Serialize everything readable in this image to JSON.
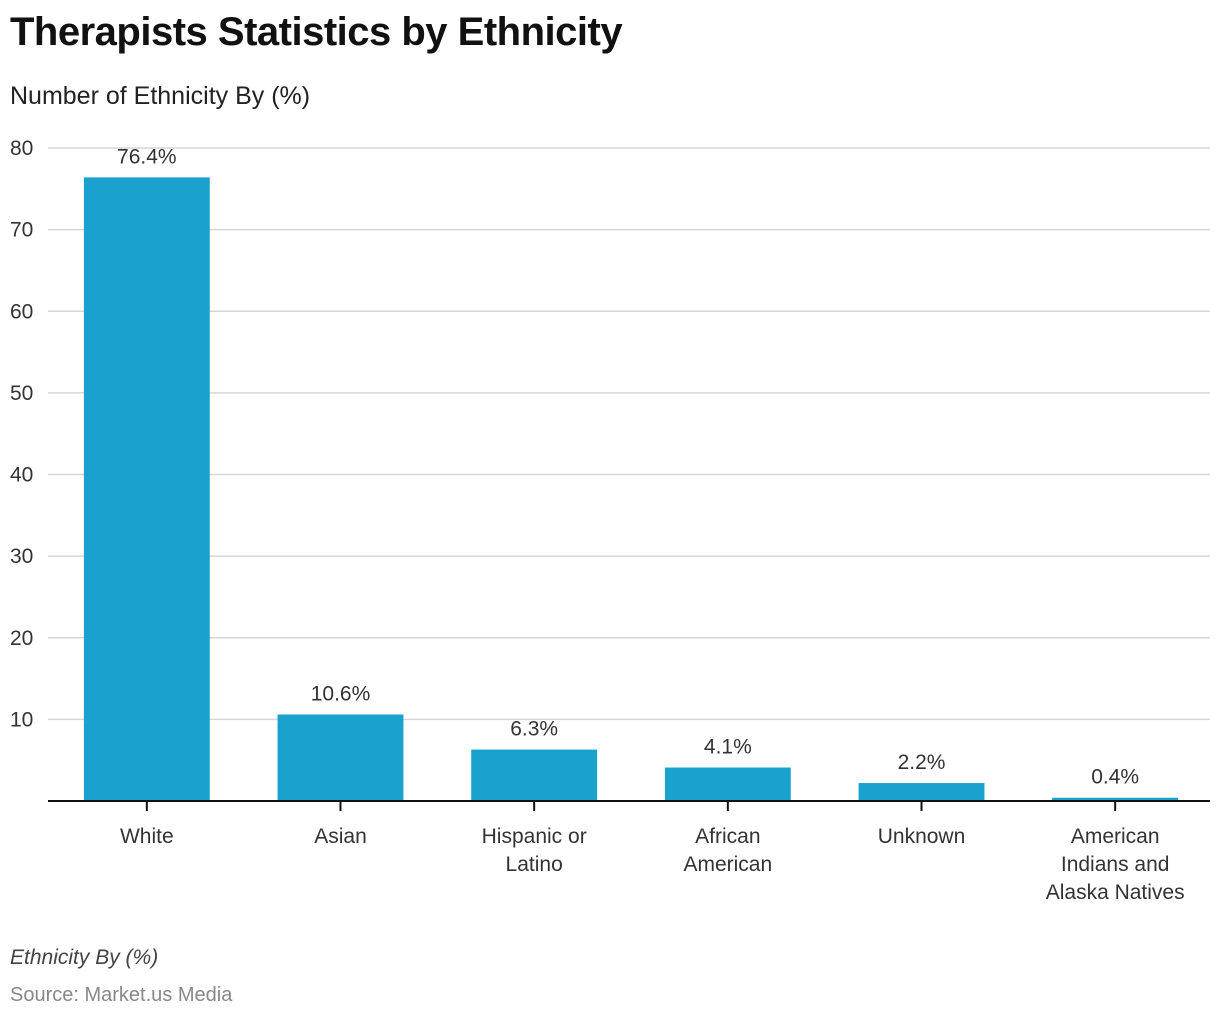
{
  "chart_data": {
    "type": "bar",
    "title": "Therapists Statistics by Ethnicity",
    "subtitle": "Number of Ethnicity By (%)",
    "xlabel": "",
    "ylabel": "",
    "categories": [
      [
        "White"
      ],
      [
        "Asian"
      ],
      [
        "Hispanic or",
        "Latino"
      ],
      [
        "African",
        "American"
      ],
      [
        "Unknown"
      ],
      [
        "American",
        "Indians and",
        "Alaska Natives"
      ]
    ],
    "values": [
      76.4,
      10.6,
      6.3,
      4.1,
      2.2,
      0.4
    ],
    "data_labels": [
      "76.4%",
      "10.6%",
      "6.3%",
      "4.1%",
      "2.2%",
      "0.4%"
    ],
    "ylim": [
      0,
      80
    ],
    "yticks": [
      10,
      20,
      30,
      40,
      50,
      60,
      70,
      80
    ],
    "grid": true,
    "legend": "none",
    "bar_color": "#1aa1cd",
    "footnote": "Ethnicity By (%)",
    "source": "Source: Market.us Media"
  }
}
